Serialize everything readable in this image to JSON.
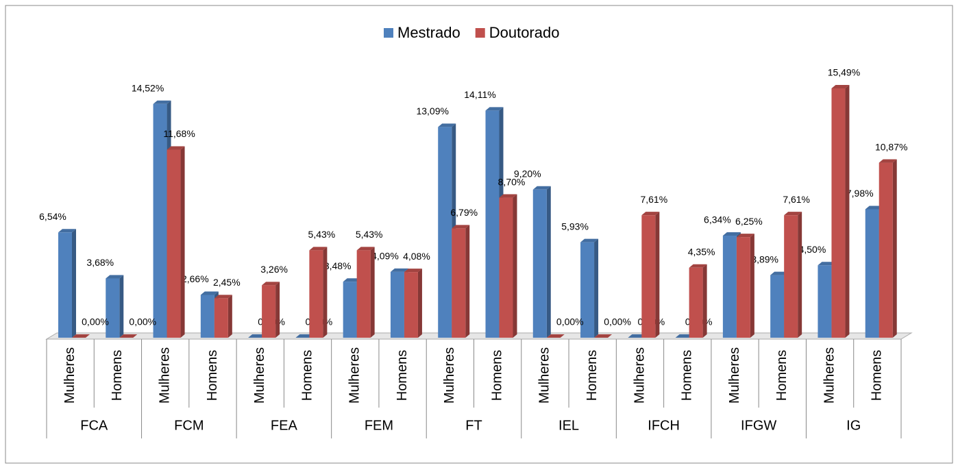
{
  "chart_data": {
    "type": "bar3d",
    "categories": [
      "Mulheres",
      "Homens",
      "Mulheres",
      "Homens",
      "Mulheres",
      "Homens",
      "Mulheres",
      "Homens",
      "Mulheres",
      "Homens",
      "Mulheres",
      "Homens",
      "Mulheres",
      "Homens",
      "Mulheres",
      "Homens",
      "Mulheres",
      "Homens"
    ],
    "groups": [
      "FCA",
      "FCM",
      "FEA",
      "FEM",
      "FT",
      "IEL",
      "IFCH",
      "IFGW",
      "IG"
    ],
    "legend": "top",
    "series": [
      {
        "name": "Mestrado",
        "color": "#4f81bd",
        "values": [
          6.54,
          3.68,
          14.52,
          2.66,
          0.0,
          0.0,
          3.48,
          4.09,
          13.09,
          14.11,
          9.2,
          5.93,
          0.0,
          0.0,
          6.34,
          3.89,
          4.5,
          7.98
        ],
        "value_labels": [
          "6,54%",
          "3,68%",
          "14,52%",
          "2,66%",
          "0,00%",
          "0,00%",
          "3,48%",
          "4,09%",
          "13,09%",
          "14,11%",
          "9,20%",
          "5,93%",
          "0,00%",
          "0,00%",
          "6,34%",
          "3,89%",
          "4,50%",
          "7,98%"
        ]
      },
      {
        "name": "Doutorado",
        "color": "#c0504d",
        "values": [
          0.0,
          0.0,
          11.68,
          2.45,
          3.26,
          5.43,
          5.43,
          4.08,
          6.79,
          8.7,
          0.0,
          0.0,
          7.61,
          4.35,
          6.25,
          7.61,
          15.49,
          10.87
        ],
        "value_labels": [
          "0,00%",
          "0,00%",
          "11,68%",
          "2,45%",
          "3,26%",
          "5,43%",
          "5,43%",
          "4,08%",
          "6,79%",
          "8,70%",
          "0,00%",
          "0,00%",
          "7,61%",
          "4,35%",
          "6,25%",
          "7,61%",
          "15,49%",
          "10,87%"
        ]
      }
    ]
  }
}
